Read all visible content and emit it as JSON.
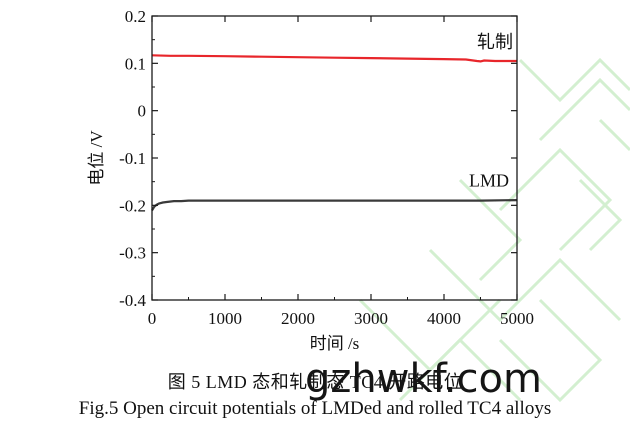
{
  "chart_data": {
    "type": "line",
    "xlabel": "时间 /s",
    "ylabel": "电位 /V",
    "xlim": [
      0,
      5000
    ],
    "ylim": [
      -0.4,
      0.2
    ],
    "xticks": [
      "0",
      "1000",
      "2000",
      "3000",
      "4000",
      "5000"
    ],
    "yticks": [
      "0.2",
      "0.1",
      "0",
      "-0.1",
      "-0.2",
      "-0.3",
      "-0.4"
    ],
    "grid": false,
    "legend": "none",
    "series": [
      {
        "name": "轧制",
        "color": "#e8262b",
        "x": [
          0,
          250,
          500,
          1000,
          1500,
          2000,
          2500,
          3000,
          3500,
          4000,
          4300,
          4450,
          4500,
          4550,
          4700,
          5000
        ],
        "y": [
          0.117,
          0.116,
          0.116,
          0.115,
          0.114,
          0.113,
          0.112,
          0.111,
          0.11,
          0.109,
          0.108,
          0.105,
          0.104,
          0.106,
          0.105,
          0.105
        ]
      },
      {
        "name": "LMD",
        "color": "#3a3a3a",
        "x": [
          0,
          30,
          60,
          100,
          150,
          200,
          300,
          400,
          500,
          700,
          1000,
          1500,
          2000,
          2500,
          3000,
          3500,
          4000,
          4500,
          5000
        ],
        "y": [
          -0.211,
          -0.203,
          -0.199,
          -0.196,
          -0.194,
          -0.193,
          -0.191,
          -0.191,
          -0.19,
          -0.19,
          -0.19,
          -0.19,
          -0.19,
          -0.19,
          -0.19,
          -0.19,
          -0.19,
          -0.19,
          -0.189
        ]
      }
    ]
  },
  "caption_cn": "图 5  LMD 态和轧制态 TC4 开路电位",
  "caption_en": "Fig.5  Open circuit potentials of LMDed and rolled TC4 alloys",
  "watermark": "gzhwkf.com"
}
